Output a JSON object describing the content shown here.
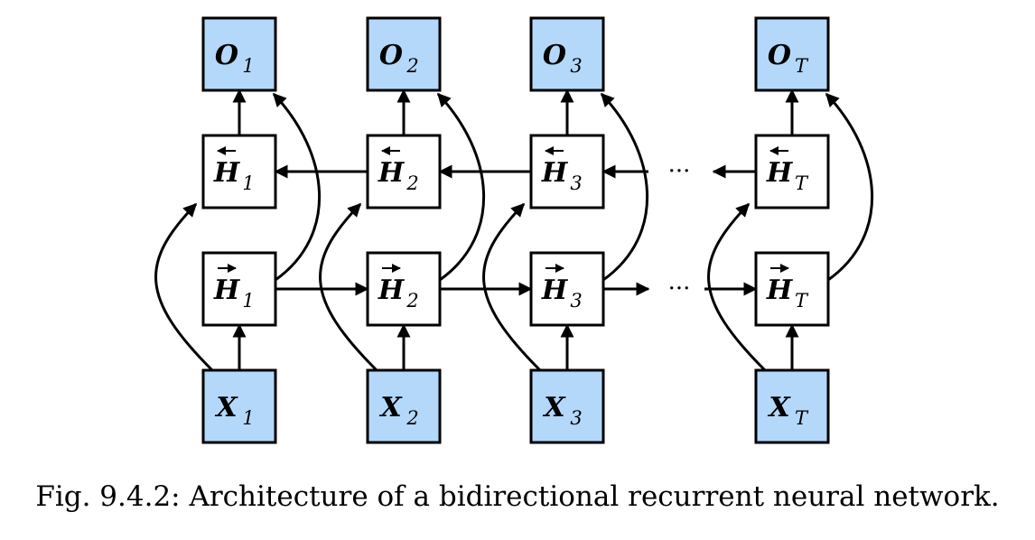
{
  "caption": "Fig. 9.4.2: Architecture of a bidirectional recurrent neural network.",
  "ellipsis": "···",
  "colors": {
    "io_fill": "#b4d8fa",
    "hidden_fill": "#ffffff",
    "stroke": "#000000"
  },
  "columns": [
    {
      "sub": "1",
      "output": "O",
      "backward": "H",
      "forward": "H",
      "input": "X"
    },
    {
      "sub": "2",
      "output": "O",
      "backward": "H",
      "forward": "H",
      "input": "X"
    },
    {
      "sub": "3",
      "output": "O",
      "backward": "H",
      "forward": "H",
      "input": "X"
    },
    {
      "sub": "T",
      "output": "O",
      "backward": "H",
      "forward": "H",
      "input": "X"
    }
  ]
}
